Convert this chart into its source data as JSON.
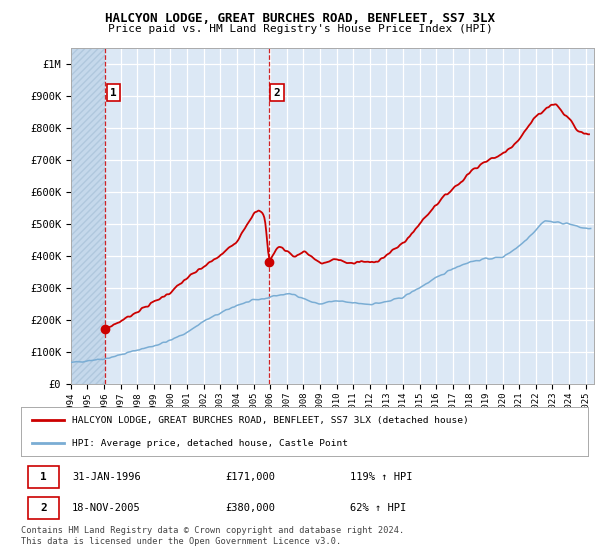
{
  "title": "HALCYON LODGE, GREAT BURCHES ROAD, BENFLEET, SS7 3LX",
  "subtitle": "Price paid vs. HM Land Registry's House Price Index (HPI)",
  "ylim": [
    0,
    1050000
  ],
  "yticks": [
    0,
    100000,
    200000,
    300000,
    400000,
    500000,
    600000,
    700000,
    800000,
    900000,
    1000000
  ],
  "ytick_labels": [
    "£0",
    "£100K",
    "£200K",
    "£300K",
    "£400K",
    "£500K",
    "£600K",
    "£700K",
    "£800K",
    "£900K",
    "£1M"
  ],
  "xlim": [
    1994,
    2025.5
  ],
  "sale1_date": 1996.08,
  "sale1_price": 171000,
  "sale1_label": "1",
  "sale2_date": 2005.92,
  "sale2_price": 380000,
  "sale2_label": "2",
  "property_color": "#cc0000",
  "hpi_color": "#7aadd4",
  "legend_property": "HALCYON LODGE, GREAT BURCHES ROAD, BENFLEET, SS7 3LX (detached house)",
  "legend_hpi": "HPI: Average price, detached house, Castle Point",
  "table_rows": [
    {
      "label": "1",
      "date": "31-JAN-1996",
      "price": "£171,000",
      "change": "119% ↑ HPI"
    },
    {
      "label": "2",
      "date": "18-NOV-2005",
      "price": "£380,000",
      "change": "62% ↑ HPI"
    }
  ],
  "footnote": "Contains HM Land Registry data © Crown copyright and database right 2024.\nThis data is licensed under the Open Government Licence v3.0.",
  "background_color": "#ffffff",
  "plot_bg_color": "#dce8f5",
  "grid_color": "#ffffff",
  "hatch_area_color": "#c5d8eb"
}
